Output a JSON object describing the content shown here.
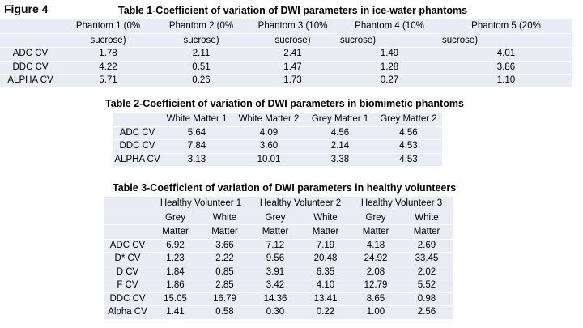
{
  "figure_label": "Figure 4",
  "table1": {
    "title": "Table 1-Coefficient of variation of DWI parameters in ice-water phantoms",
    "headers_line1": [
      "Phantom 1 (0%",
      "Phantom 2 (0%",
      "Phantom 3 (10%",
      "Phantom 4 (10%",
      "Phantom 5 (20%"
    ],
    "headers_line2": [
      "sucrose)",
      "sucrose)",
      "sucrose)",
      "sucrose)",
      "sucrose)"
    ],
    "rows": [
      {
        "label": "ADC CV",
        "values": [
          "1.78",
          "2.11",
          "2.41",
          "1.49",
          "4.01"
        ]
      },
      {
        "label": "DDC CV",
        "values": [
          "4.22",
          "0.51",
          "1.47",
          "1.28",
          "3.86"
        ]
      },
      {
        "label": "ALPHA CV",
        "values": [
          "5.71",
          "0.26",
          "1.73",
          "0.27",
          "1.10"
        ]
      }
    ]
  },
  "table2": {
    "title": "Table 2-Coefficient of variation of DWI parameters in biomimetic phantoms",
    "headers": [
      "White Matter 1",
      "White Matter 2",
      "Grey Matter 1",
      "Grey Matter 2"
    ],
    "rows": [
      {
        "label": "ADC CV",
        "values": [
          "5.64",
          "4.09",
          "4.56",
          "4.56"
        ]
      },
      {
        "label": "DDC CV",
        "values": [
          "7.84",
          "3.60",
          "2.14",
          "4.53"
        ]
      },
      {
        "label": "ALPHA CV",
        "values": [
          "3.13",
          "10.01",
          "3.38",
          "4.53"
        ]
      }
    ]
  },
  "table3": {
    "title": "Table 3-Coefficient of variation of DWI parameters in healthy volunteers",
    "groups": [
      "Healthy Volunteer 1",
      "Healthy Volunteer 2",
      "Healthy Volunteer 3"
    ],
    "sub_line1": [
      "Grey",
      "White",
      "Grey",
      "White",
      "Grey",
      "White"
    ],
    "sub_line2": [
      "Matter",
      "Matter",
      "Matter",
      "Matter",
      "Matter",
      "Matter"
    ],
    "rows": [
      {
        "label": "ADC CV",
        "values": [
          "6.92",
          "3.66",
          "7.12",
          "7.19",
          "4.18",
          "2.69"
        ]
      },
      {
        "label": "D* CV",
        "values": [
          "1.23",
          "2.22",
          "9.56",
          "20.48",
          "24.92",
          "33.45"
        ]
      },
      {
        "label": "D CV",
        "values": [
          "1.84",
          "0.85",
          "3.91",
          "6.35",
          "2.08",
          "2.02"
        ]
      },
      {
        "label": "F CV",
        "values": [
          "1.86",
          "2.85",
          "3.42",
          "4.10",
          "12.79",
          "5.52"
        ]
      },
      {
        "label": "DDC CV",
        "values": [
          "15.05",
          "16.79",
          "14.36",
          "13.41",
          "8.65",
          "0.98"
        ]
      },
      {
        "label": "Alpha CV",
        "values": [
          "1.41",
          "0.58",
          "0.30",
          "0.22",
          "1.00",
          "2.56"
        ]
      }
    ]
  }
}
